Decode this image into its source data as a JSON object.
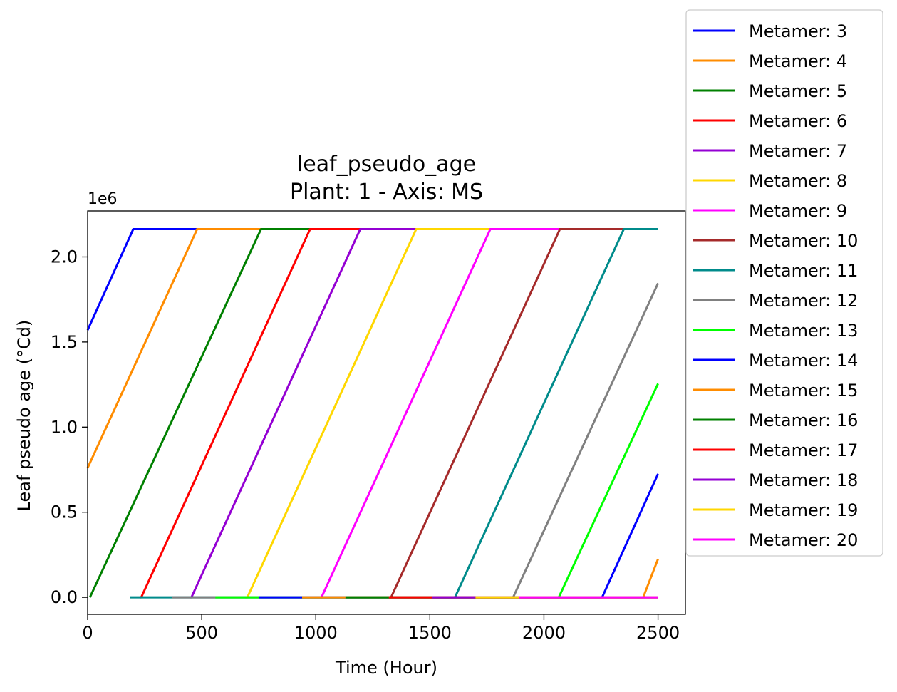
{
  "chart_data": {
    "type": "line",
    "title": "leaf_pseudo_age",
    "subtitle": "Plant: 1 - Axis: MS",
    "xlabel": "Time (Hour)",
    "ylabel": "Leaf pseudo age (°Cd)",
    "y_offset_label": "1e6",
    "xlim": [
      0,
      2620
    ],
    "ylim": [
      -0.1,
      2.27
    ],
    "xticks": [
      0,
      500,
      1000,
      1500,
      2000,
      2500
    ],
    "xtick_labels": [
      "0",
      "500",
      "1000",
      "1500",
      "2000",
      "2500"
    ],
    "yticks": [
      0.0,
      0.5,
      1.0,
      1.5,
      2.0
    ],
    "ytick_labels": [
      "0.0",
      "0.5",
      "1.0",
      "1.5",
      "2.0"
    ],
    "grid": false,
    "legend_placement": "outside right, upper",
    "series": [
      {
        "name": "Metamer: 3",
        "color": "#0000ff",
        "x": [
          0,
          200,
          2500
        ],
        "y": [
          1.57,
          2.163,
          2.163
        ]
      },
      {
        "name": "Metamer: 4",
        "color": "#ff8c00",
        "x": [
          0,
          480,
          2500
        ],
        "y": [
          0.76,
          2.163,
          2.163
        ]
      },
      {
        "name": "Metamer: 5",
        "color": "#008000",
        "x": [
          10,
          760,
          2500
        ],
        "y": [
          0,
          2.163,
          2.163
        ]
      },
      {
        "name": "Metamer: 6",
        "color": "#ff0000",
        "x": [
          230,
          235,
          975,
          2500
        ],
        "y": [
          0,
          0,
          2.163,
          2.163
        ]
      },
      {
        "name": "Metamer: 7",
        "color": "#9400d3",
        "x": [
          450,
          455,
          1195,
          2500
        ],
        "y": [
          0,
          0,
          2.163,
          2.163
        ]
      },
      {
        "name": "Metamer: 8",
        "color": "#ffd700",
        "x": [
          690,
          700,
          1440,
          2500
        ],
        "y": [
          0,
          0,
          2.163,
          2.163
        ]
      },
      {
        "name": "Metamer: 9",
        "color": "#ff00ff",
        "x": [
          1020,
          1025,
          1765,
          2500
        ],
        "y": [
          0,
          0,
          2.163,
          2.163
        ]
      },
      {
        "name": "Metamer: 10",
        "color": "#a52a2a",
        "x": [
          1320,
          1330,
          2070,
          2500
        ],
        "y": [
          0,
          0,
          2.163,
          2.163
        ]
      },
      {
        "name": "Metamer: 11",
        "color": "#008b8b",
        "x": [
          185,
          1600,
          1610,
          2350,
          2500
        ],
        "y": [
          0,
          0,
          0,
          2.163,
          2.163
        ]
      },
      {
        "name": "Metamer: 12",
        "color": "#808080",
        "x": [
          370,
          1860,
          1865,
          2500
        ],
        "y": [
          0,
          0,
          0,
          1.845
        ]
      },
      {
        "name": "Metamer: 13",
        "color": "#00ff00",
        "x": [
          560,
          2060,
          2065,
          2500
        ],
        "y": [
          0,
          0,
          0,
          1.255
        ]
      },
      {
        "name": "Metamer: 14",
        "color": "#0000ff",
        "x": [
          750,
          2250,
          2255,
          2500
        ],
        "y": [
          0,
          0,
          0,
          0.725
        ]
      },
      {
        "name": "Metamer: 15",
        "color": "#ff8c00",
        "x": [
          940,
          2430,
          2435,
          2500
        ],
        "y": [
          0,
          0,
          0,
          0.225
        ]
      },
      {
        "name": "Metamer: 16",
        "color": "#008000",
        "x": [
          1130,
          2500
        ],
        "y": [
          0,
          0
        ]
      },
      {
        "name": "Metamer: 17",
        "color": "#ff0000",
        "x": [
          1320,
          2500
        ],
        "y": [
          0,
          0
        ]
      },
      {
        "name": "Metamer: 18",
        "color": "#9400d3",
        "x": [
          1510,
          2500
        ],
        "y": [
          0,
          0
        ]
      },
      {
        "name": "Metamer: 19",
        "color": "#ffd700",
        "x": [
          1700,
          2500
        ],
        "y": [
          0,
          0
        ]
      },
      {
        "name": "Metamer: 20",
        "color": "#ff00ff",
        "x": [
          1890,
          2500
        ],
        "y": [
          0,
          0
        ]
      }
    ]
  }
}
